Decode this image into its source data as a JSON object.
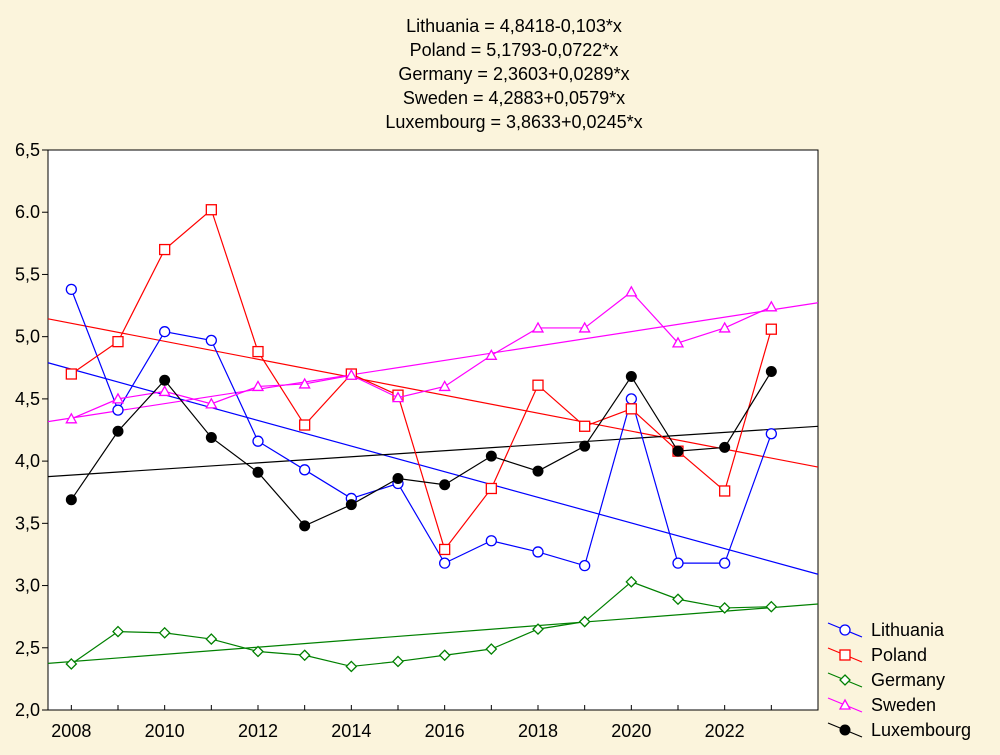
{
  "chart_data": {
    "type": "line",
    "title_lines": [
      "Lithuania = 4,8418-0,103*x",
      "Poland = 5,1793-0,0722*x",
      "Germany = 2,3603+0,0289*x",
      "Sweden = 4,2883+0,0579*x",
      "Luxembourg = 3,8633+0,0245*x"
    ],
    "xlabel": "",
    "ylabel": "",
    "x": [
      2008,
      2009,
      2010,
      2011,
      2012,
      2013,
      2014,
      2015,
      2016,
      2017,
      2018,
      2019,
      2020,
      2021,
      2022,
      2023
    ],
    "xlim": [
      2007.5,
      2024.0
    ],
    "ylim": [
      2.0,
      6.5
    ],
    "x_tick_labels": [
      "2008",
      "2010",
      "2012",
      "2014",
      "2016",
      "2018",
      "2020",
      "2022"
    ],
    "y_tick_labels": [
      "2,0",
      "2,5",
      "3,0",
      "3,5",
      "4,0",
      "4,5",
      "5,0",
      "5,5",
      "6.0",
      "6,5"
    ],
    "y_tick_values": [
      2.0,
      2.5,
      3.0,
      3.5,
      4.0,
      4.5,
      5.0,
      5.5,
      6.0,
      6.5
    ],
    "grid": false,
    "legend_position": "bottom-right",
    "series": [
      {
        "name": "Lithuania",
        "color": "#0000ff",
        "marker": "circle-open",
        "values": [
          5.38,
          4.41,
          5.04,
          4.97,
          4.16,
          3.93,
          3.7,
          3.82,
          3.18,
          3.36,
          3.27,
          3.16,
          4.5,
          3.18,
          3.18,
          4.22
        ],
        "fit": {
          "intercept": 4.8418,
          "slope": -0.103
        }
      },
      {
        "name": "Poland",
        "color": "#ff0000",
        "marker": "square-open",
        "values": [
          4.7,
          4.96,
          5.7,
          6.02,
          4.88,
          4.29,
          4.7,
          4.53,
          3.29,
          3.78,
          4.61,
          4.28,
          4.42,
          4.08,
          3.76,
          5.06
        ],
        "fit": {
          "intercept": 5.1793,
          "slope": -0.0722
        }
      },
      {
        "name": "Germany",
        "color": "#008000",
        "marker": "diamond-open",
        "values": [
          2.37,
          2.63,
          2.62,
          2.57,
          2.47,
          2.44,
          2.35,
          2.39,
          2.44,
          2.49,
          2.65,
          2.71,
          3.03,
          2.89,
          2.82,
          2.83
        ],
        "fit": {
          "intercept": 2.3603,
          "slope": 0.0289
        }
      },
      {
        "name": "Sweden",
        "color": "#ff00ff",
        "marker": "triangle-open",
        "values": [
          4.34,
          4.5,
          4.56,
          4.46,
          4.6,
          4.62,
          4.69,
          4.51,
          4.6,
          4.85,
          5.07,
          5.07,
          5.36,
          4.95,
          5.07,
          5.24
        ],
        "fit": {
          "intercept": 4.2883,
          "slope": 0.0579
        }
      },
      {
        "name": "Luxembourg",
        "color": "#000000",
        "marker": "circle-filled",
        "values": [
          3.69,
          4.24,
          4.65,
          4.19,
          3.91,
          3.48,
          3.65,
          3.86,
          3.81,
          4.04,
          3.92,
          4.12,
          4.68,
          4.08,
          4.11,
          4.72
        ],
        "fit": {
          "intercept": 3.8633,
          "slope": 0.0245
        }
      }
    ]
  }
}
